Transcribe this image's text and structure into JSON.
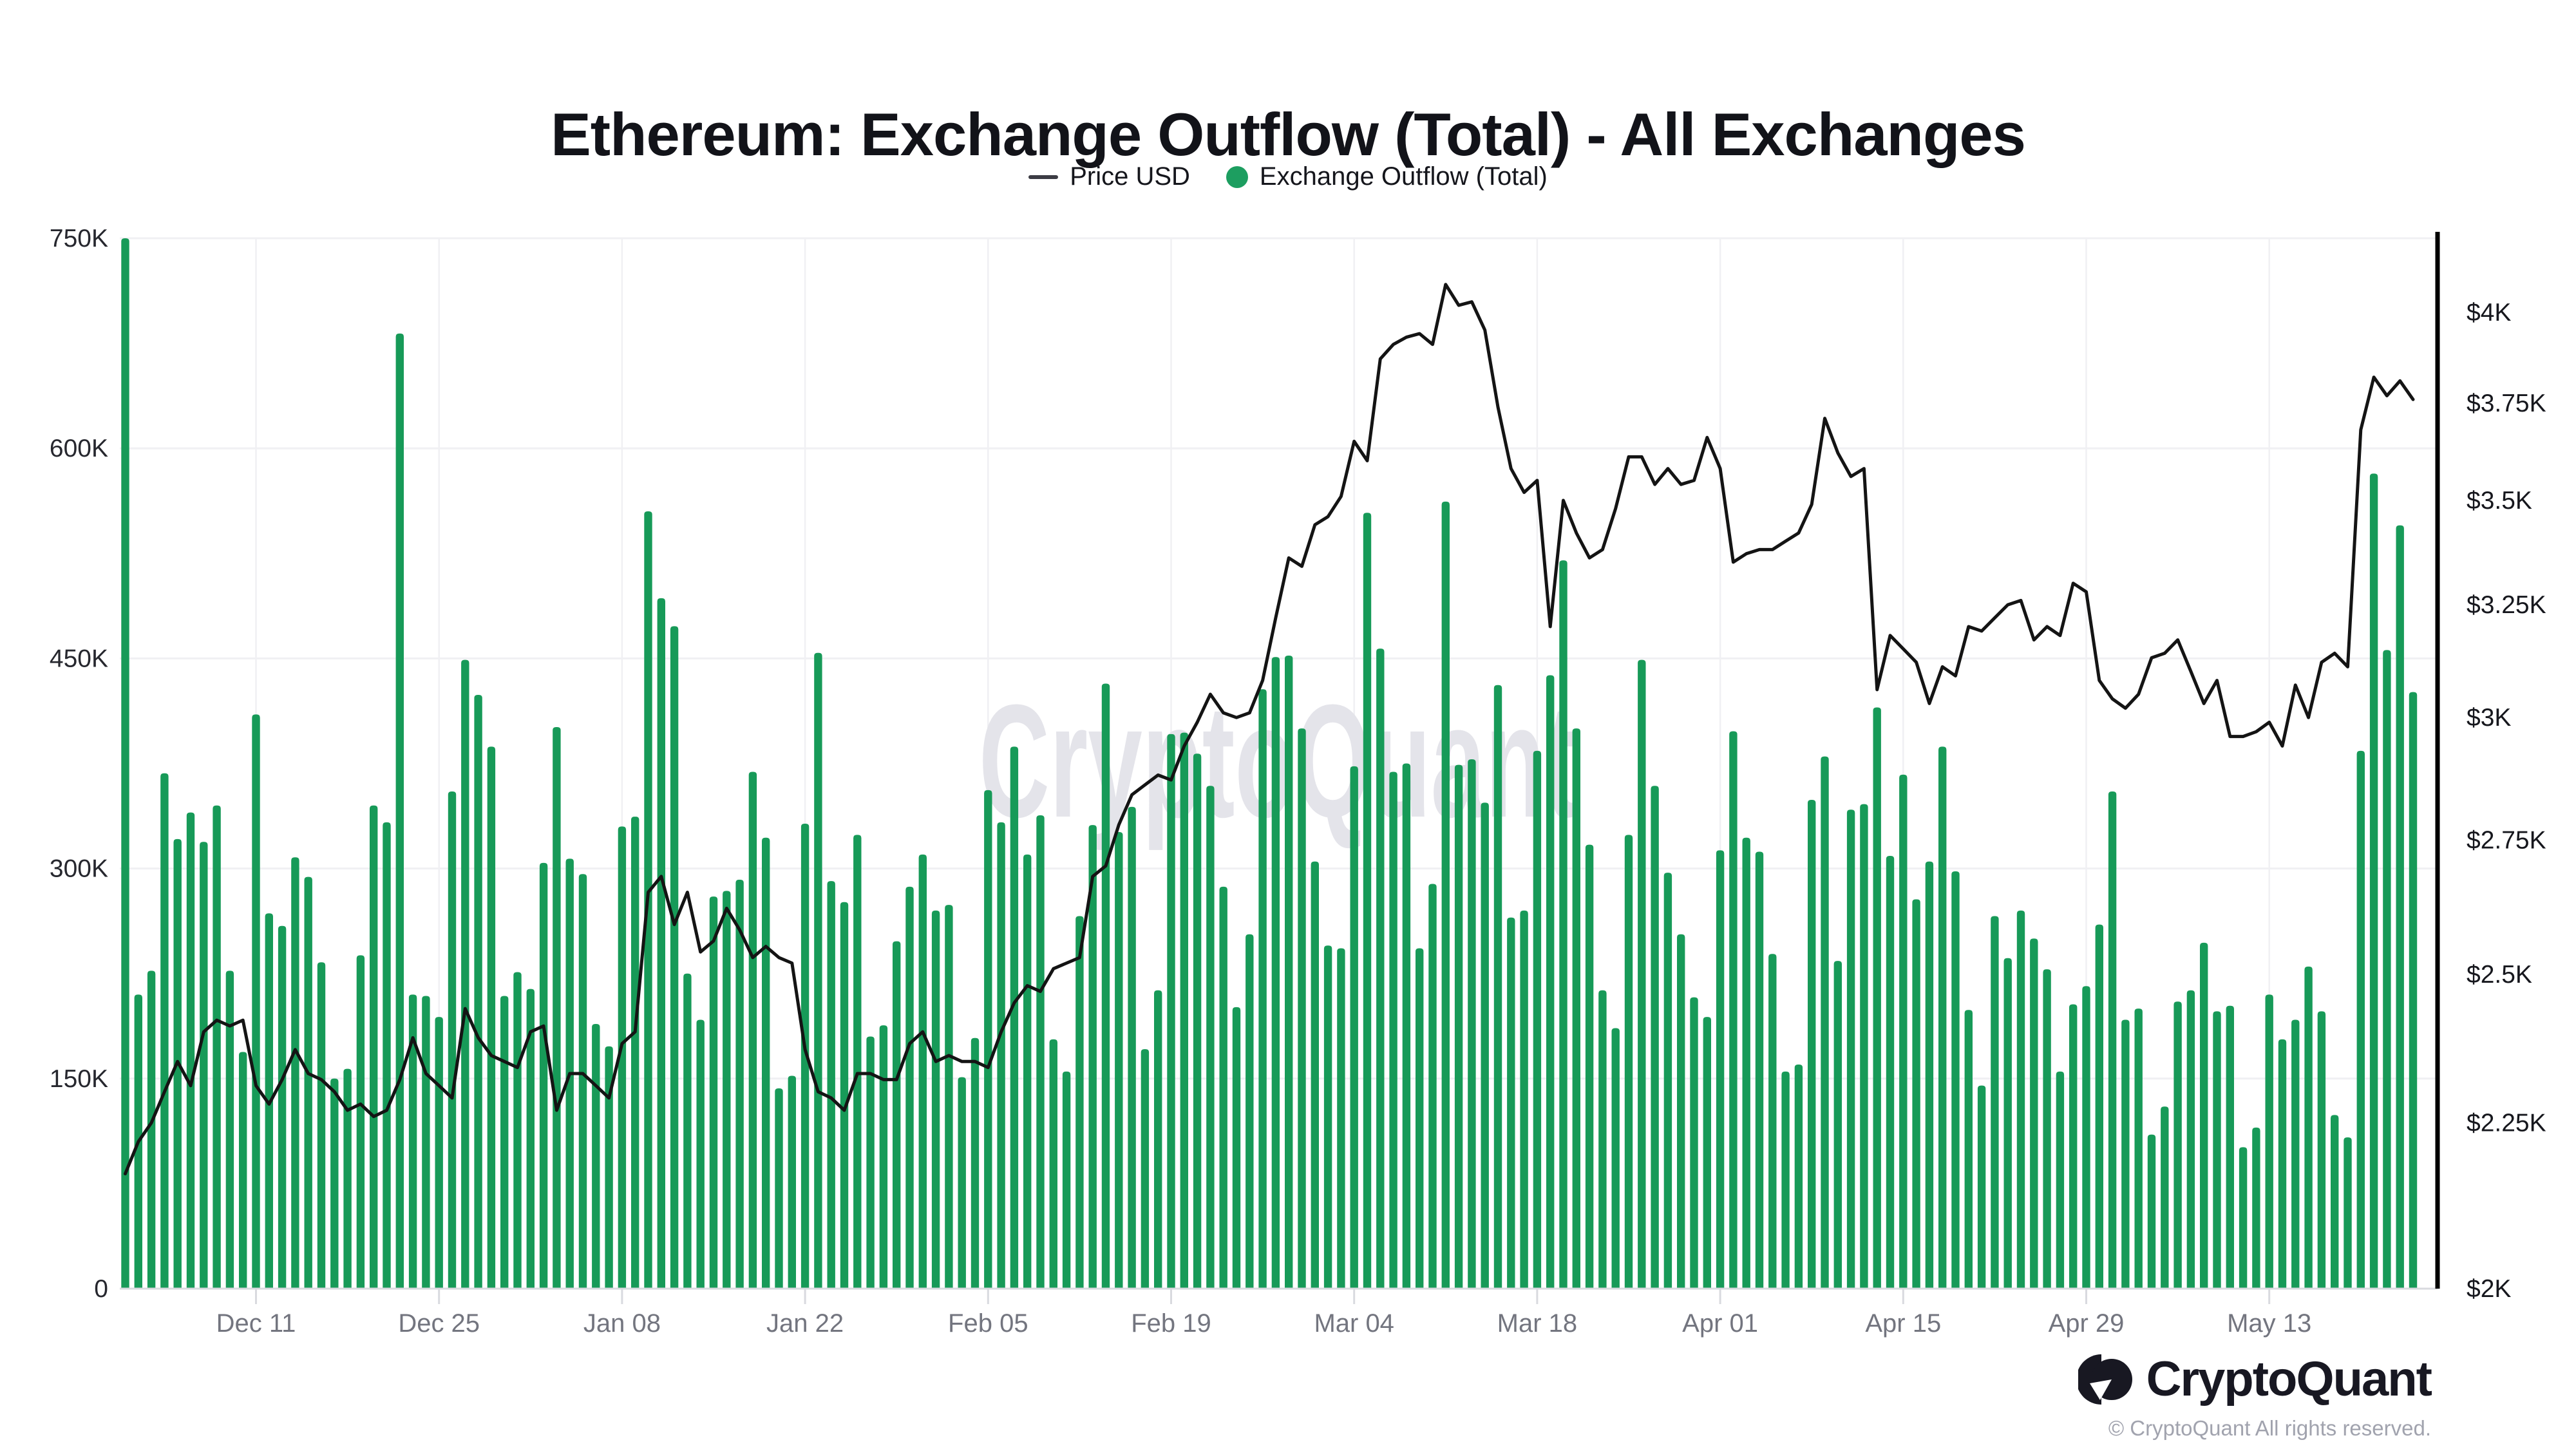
{
  "title": "Ethereum: Exchange Outflow (Total) - All Exchanges",
  "legend": {
    "price_label": "Price USD",
    "outflow_label": "Exchange Outflow (Total)"
  },
  "watermark": "CryptoQuant",
  "footer": {
    "brand": "CryptoQuant",
    "copyright": "© CryptoQuant All rights reserved."
  },
  "colors": {
    "bar": "#179a58",
    "legend_dot": "#1d9e60",
    "price_line": "#141414",
    "grid": "#f0f0f3",
    "baseline": "#d9dadf",
    "right_axis_line": "#000000",
    "left_axis_text": "#26272e",
    "right_axis_text": "#16171d",
    "x_axis_text": "#73757f",
    "watermark": "#e4e4ea"
  },
  "chart_data": {
    "type": "bar+line",
    "title": "Ethereum: Exchange Outflow (Total) - All Exchanges",
    "x": {
      "tick_labels": [
        "Dec 11",
        "Dec 25",
        "Jan 08",
        "Jan 22",
        "Feb 05",
        "Feb 19",
        "Mar 04",
        "Mar 18",
        "Apr 01",
        "Apr 15",
        "Apr 29",
        "May 13"
      ],
      "tick_day_indices": [
        10,
        24,
        38,
        52,
        66,
        80,
        94,
        108,
        122,
        136,
        150,
        164
      ],
      "days_total": 176,
      "first_day": "Dec 01",
      "last_day": "May 24"
    },
    "left_axis": {
      "tick_labels": [
        "750K",
        "600K",
        "450K",
        "300K",
        "150K",
        "0"
      ],
      "tick_values_k": [
        750,
        600,
        450,
        300,
        150,
        0
      ],
      "min_k": 0,
      "max_k": 750,
      "grid": true
    },
    "right_axis": {
      "tick_labels": [
        "$4K",
        "$3.75K",
        "$3.5K",
        "$3.25K",
        "$3K",
        "$2.75K",
        "$2.5K",
        "$2.25K",
        "$2K"
      ],
      "tick_values_usd_k": [
        4,
        3.75,
        3.5,
        3.25,
        3,
        2.75,
        2.5,
        2.25,
        2
      ],
      "scale": "log",
      "min_usd_k": 2
    },
    "series": [
      {
        "name": "Exchange Outflow (Total)",
        "type": "bar",
        "axis": "left",
        "unit": "K ETH",
        "first_bar_clipped_at_max": true,
        "values_k": [
          750,
          210,
          227,
          368,
          321,
          340,
          319,
          345,
          227,
          169,
          410,
          268,
          259,
          308,
          294,
          233,
          150,
          157,
          238,
          345,
          333,
          682,
          210,
          209,
          194,
          355,
          449,
          424,
          387,
          209,
          226,
          214,
          304,
          401,
          307,
          296,
          189,
          173,
          330,
          337,
          555,
          493,
          473,
          225,
          192,
          280,
          284,
          292,
          369,
          322,
          143,
          152,
          332,
          454,
          291,
          276,
          324,
          180,
          188,
          248,
          287,
          310,
          270,
          274,
          151,
          179,
          356,
          333,
          387,
          310,
          338,
          178,
          155,
          266,
          331,
          432,
          326,
          344,
          171,
          213,
          396,
          397,
          382,
          359,
          287,
          201,
          253,
          428,
          451,
          452,
          400,
          305,
          245,
          243,
          373,
          554,
          457,
          369,
          375,
          243,
          289,
          562,
          374,
          378,
          347,
          431,
          265,
          270,
          384,
          438,
          520,
          400,
          317,
          213,
          186,
          324,
          449,
          359,
          297,
          253,
          208,
          194,
          313,
          398,
          322,
          312,
          239,
          155,
          160,
          349,
          380,
          234,
          342,
          346,
          415,
          309,
          367,
          278,
          305,
          387,
          298,
          199,
          145,
          266,
          236,
          270,
          250,
          228,
          155,
          203,
          216,
          260,
          355,
          192,
          200,
          110,
          130,
          205,
          213,
          247,
          198,
          202,
          101,
          115,
          210,
          178,
          192,
          230,
          198,
          124,
          108,
          384,
          582,
          456,
          545,
          426
        ]
      },
      {
        "name": "Price USD",
        "type": "line",
        "axis": "right",
        "unit": "K USD",
        "values_k": [
          2.17,
          2.22,
          2.25,
          2.3,
          2.35,
          2.31,
          2.4,
          2.42,
          2.41,
          2.42,
          2.31,
          2.28,
          2.32,
          2.37,
          2.33,
          2.32,
          2.3,
          2.27,
          2.28,
          2.26,
          2.27,
          2.32,
          2.39,
          2.33,
          2.31,
          2.29,
          2.44,
          2.39,
          2.36,
          2.35,
          2.34,
          2.4,
          2.41,
          2.27,
          2.33,
          2.33,
          2.31,
          2.29,
          2.38,
          2.4,
          2.65,
          2.68,
          2.59,
          2.65,
          2.54,
          2.56,
          2.62,
          2.58,
          2.53,
          2.55,
          2.53,
          2.52,
          2.37,
          2.3,
          2.29,
          2.27,
          2.33,
          2.33,
          2.32,
          2.32,
          2.38,
          2.4,
          2.35,
          2.36,
          2.35,
          2.35,
          2.34,
          2.4,
          2.45,
          2.48,
          2.47,
          2.51,
          2.52,
          2.53,
          2.68,
          2.7,
          2.78,
          2.84,
          2.86,
          2.88,
          2.87,
          2.94,
          2.99,
          3.05,
          3.01,
          3.0,
          3.01,
          3.08,
          3.22,
          3.36,
          3.34,
          3.44,
          3.46,
          3.51,
          3.65,
          3.6,
          3.87,
          3.91,
          3.93,
          3.94,
          3.91,
          4.08,
          4.02,
          4.03,
          3.95,
          3.74,
          3.58,
          3.52,
          3.55,
          3.2,
          3.5,
          3.42,
          3.36,
          3.38,
          3.48,
          3.61,
          3.61,
          3.54,
          3.58,
          3.54,
          3.55,
          3.66,
          3.58,
          3.35,
          3.37,
          3.38,
          3.38,
          3.4,
          3.42,
          3.49,
          3.71,
          3.62,
          3.56,
          3.58,
          3.06,
          3.18,
          3.15,
          3.12,
          3.03,
          3.11,
          3.09,
          3.2,
          3.19,
          3.22,
          3.25,
          3.26,
          3.17,
          3.2,
          3.18,
          3.3,
          3.28,
          3.08,
          3.04,
          3.02,
          3.05,
          3.13,
          3.14,
          3.17,
          3.1,
          3.03,
          3.08,
          2.96,
          2.96,
          2.97,
          2.99,
          2.94,
          3.07,
          3.0,
          3.12,
          3.14,
          3.11,
          3.68,
          3.82,
          3.77,
          3.81,
          3.76
        ]
      }
    ]
  }
}
